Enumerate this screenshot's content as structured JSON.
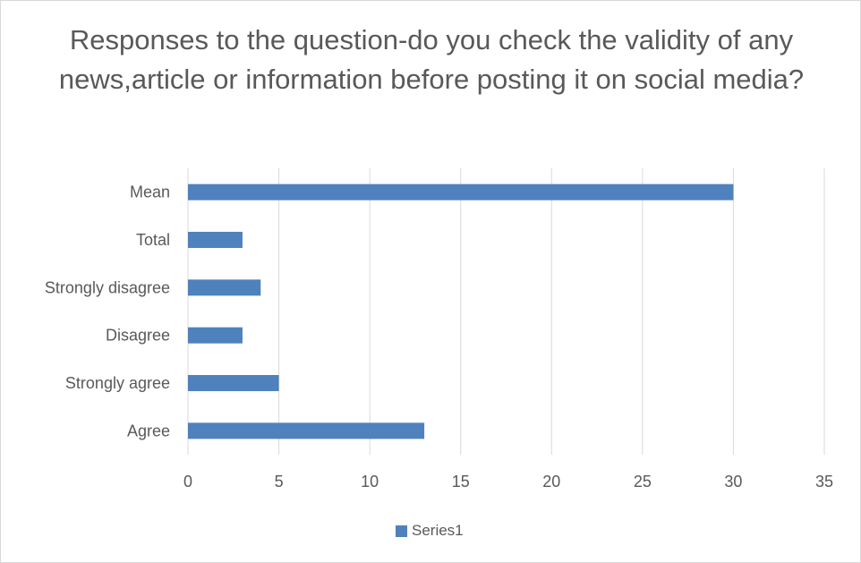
{
  "chart_data": {
    "type": "bar",
    "orientation": "horizontal",
    "title": "Responses to the question-do you check the validity of any news,article or information before posting it on social media?",
    "categories": [
      "Agree",
      "Strongly agree",
      "Disagree",
      "Strongly disagree",
      "Total",
      "Mean"
    ],
    "series": [
      {
        "name": "Series1",
        "values": [
          13,
          5,
          3,
          4,
          3,
          30
        ],
        "color": "#4f81bd"
      }
    ],
    "xlim": [
      0,
      35
    ],
    "xticks": [
      0,
      5,
      10,
      15,
      20,
      25,
      30,
      35
    ],
    "grid": true,
    "legend": "bottom"
  }
}
